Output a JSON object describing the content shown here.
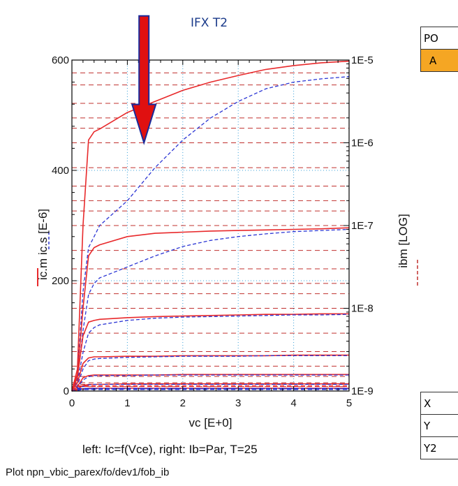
{
  "title": "IFX T2",
  "subtitle": "left: Ic=f(Vce), right:  Ib=Par, T=25",
  "footer": "Plot npn_vbic_parex/fo/dev1/fob_ib",
  "axis_labels": {
    "x": "vc  [E+0]",
    "y_left": "ic.m  ic.s  [E-6]",
    "y_right": "ibm  [LOG]"
  },
  "params_table": {
    "header": "PO",
    "selected": "A"
  },
  "axis_table": {
    "rows": [
      "X",
      "Y",
      "Y2"
    ]
  },
  "colors": {
    "measured": "#e8292b",
    "simulated": "#2b35d4",
    "arrow": "#e01010",
    "grid": "#3aa0d8",
    "ibm": "#c0302e",
    "highlight": "#f5a623"
  },
  "chart_data": {
    "type": "line",
    "title": "IFX T2",
    "subtitle": "left: Ic=f(Vce), right:  Ib=Par, T=25",
    "xlabel": "vc  [E+0]",
    "ylabel": "ic.m  ic.s  [E-6]",
    "y2label": "ibm  [LOG]",
    "xlim": [
      0,
      5
    ],
    "ylim": [
      0,
      600
    ],
    "y2lim": [
      "1E-9",
      "1E-5"
    ],
    "y2scale": "log",
    "xticks": [
      "0",
      "1",
      "2",
      "3",
      "4",
      "5"
    ],
    "yticks": [
      "0",
      "200",
      "400",
      "600"
    ],
    "y2ticks": [
      "1E-9",
      "1E-8",
      "1E-7",
      "1E-6",
      "1E-5"
    ],
    "grid": true,
    "x": [
      0,
      0.1,
      0.2,
      0.3,
      0.4,
      0.5,
      1.0,
      1.5,
      2.0,
      2.5,
      3.0,
      3.5,
      4.0,
      4.5,
      5.0
    ],
    "series": [
      {
        "legend": "ic.m",
        "style": "measured",
        "values": [
          0,
          40,
          300,
          455,
          470,
          475,
          505,
          525,
          545,
          560,
          572,
          583,
          590,
          595,
          598
        ]
      },
      {
        "legend": "ic.s",
        "style": "simulated",
        "values": [
          0,
          30,
          180,
          260,
          280,
          300,
          345,
          405,
          455,
          495,
          525,
          548,
          560,
          566,
          570
        ]
      },
      {
        "legend": "ic.m",
        "style": "measured",
        "values": [
          0,
          30,
          150,
          245,
          260,
          265,
          280,
          286,
          288,
          290,
          291,
          292,
          293,
          294,
          296
        ]
      },
      {
        "legend": "ic.s",
        "style": "simulated",
        "values": [
          0,
          20,
          110,
          175,
          195,
          205,
          225,
          245,
          262,
          273,
          280,
          285,
          289,
          291,
          293
        ]
      },
      {
        "legend": "ic.m",
        "style": "measured",
        "values": [
          0,
          25,
          100,
          125,
          128,
          130,
          133,
          135,
          136,
          137,
          138,
          139,
          139,
          140,
          140
        ]
      },
      {
        "legend": "ic.s",
        "style": "simulated",
        "values": [
          0,
          15,
          70,
          105,
          115,
          120,
          128,
          132,
          134,
          135,
          136,
          137,
          138,
          138,
          139
        ]
      },
      {
        "legend": "ic.m",
        "style": "measured",
        "values": [
          0,
          15,
          50,
          60,
          62,
          62,
          63,
          63,
          64,
          64,
          64,
          64,
          65,
          65,
          65
        ]
      },
      {
        "legend": "ic.s",
        "style": "simulated",
        "values": [
          0,
          10,
          40,
          55,
          58,
          59,
          61,
          62,
          63,
          63,
          63,
          64,
          64,
          64,
          64
        ]
      },
      {
        "legend": "ic.m",
        "style": "measured",
        "values": [
          0,
          8,
          24,
          28,
          29,
          29,
          29,
          29,
          30,
          30,
          30,
          30,
          30,
          30,
          30
        ]
      },
      {
        "legend": "ic.s",
        "style": "simulated",
        "values": [
          0,
          6,
          20,
          26,
          28,
          28,
          28,
          29,
          29,
          29,
          29,
          29,
          29,
          29,
          29
        ]
      },
      {
        "legend": "ic.m",
        "style": "measured",
        "values": [
          0,
          4,
          10,
          12,
          12,
          12,
          13,
          13,
          13,
          13,
          13,
          13,
          13,
          13,
          13
        ]
      },
      {
        "legend": "ic.s",
        "style": "simulated",
        "values": [
          0,
          3,
          8,
          11,
          12,
          12,
          12,
          12,
          12,
          12,
          12,
          12,
          12,
          12,
          12
        ]
      },
      {
        "legend": "ic.m",
        "style": "measured",
        "values": [
          0,
          2,
          4,
          5,
          5,
          5,
          5,
          5,
          5,
          5,
          5,
          5,
          5,
          5,
          5
        ]
      },
      {
        "legend": "ic.s",
        "style": "simulated",
        "values": [
          0,
          1,
          3,
          4,
          4,
          4,
          4,
          4,
          4,
          4,
          4,
          4,
          4,
          4,
          4
        ]
      }
    ],
    "ibm_levels_y2": [
      "1E-9",
      "1.5E-9",
      "2E-9",
      "3E-9",
      "5E-9",
      "1E-8",
      "1.5E-8",
      "2E-8",
      "3E-8",
      "5E-8",
      "1E-7",
      "1.5E-7",
      "2E-7",
      "3E-7",
      "5E-7",
      "1E-6",
      "1.5E-6",
      "2E-6",
      "3E-6",
      "5E-6",
      "7E-6"
    ],
    "ibm_levels_left_units": [
      8,
      12,
      15
    ],
    "arrow": {
      "x": 1.3,
      "y_from": 680,
      "y_to": 450,
      "direction": "down"
    }
  }
}
